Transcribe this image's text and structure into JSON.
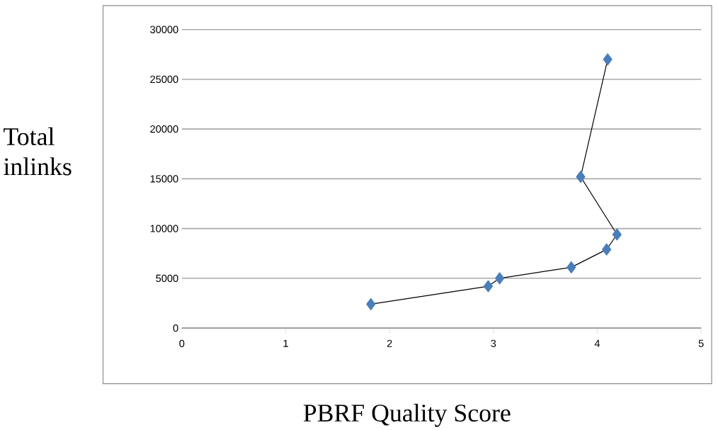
{
  "chart_data": {
    "type": "line",
    "xlabel": "PBRF Quality Score",
    "ylabel": "Total inlinks",
    "x": [
      1.82,
      2.95,
      3.06,
      3.75,
      4.09,
      4.19,
      3.84,
      4.1
    ],
    "series": [
      {
        "color": "#4a7ebb",
        "values": [
          2400,
          4200,
          5000,
          6100,
          7900,
          9400,
          15200,
          27000
        ]
      }
    ],
    "xlim": [
      0,
      5
    ],
    "xticks": [
      0,
      1,
      2,
      3,
      4,
      5
    ],
    "ylim": [
      0,
      30000
    ],
    "yticks": [
      0,
      5000,
      10000,
      15000,
      20000,
      25000,
      30000
    ],
    "grid": "y",
    "marker": "diamond",
    "line_style": "solid"
  }
}
